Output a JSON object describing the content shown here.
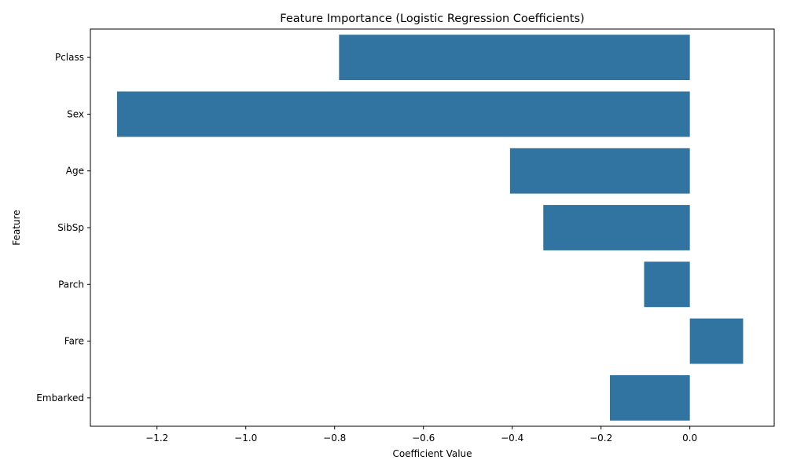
{
  "chart_data": {
    "type": "bar",
    "orientation": "horizontal",
    "title": "Feature Importance (Logistic Regression Coefficients)",
    "xlabel": "Coefficient Value",
    "ylabel": "Feature",
    "categories": [
      "Pclass",
      "Sex",
      "Age",
      "SibSp",
      "Parch",
      "Fare",
      "Embarked"
    ],
    "values": [
      -0.79,
      -1.29,
      -0.405,
      -0.33,
      -0.103,
      0.12,
      -0.18
    ],
    "xlim": [
      -1.35,
      0.19
    ],
    "xticks": [
      -1.2,
      -1.0,
      -0.8,
      -0.6,
      -0.4,
      -0.2,
      0.0
    ],
    "xtick_labels": [
      "−1.2",
      "−1.0",
      "−0.8",
      "−0.6",
      "−0.4",
      "−0.2",
      "0.0"
    ],
    "grid": false,
    "legend": "none",
    "bar_color": "#3274a1"
  }
}
